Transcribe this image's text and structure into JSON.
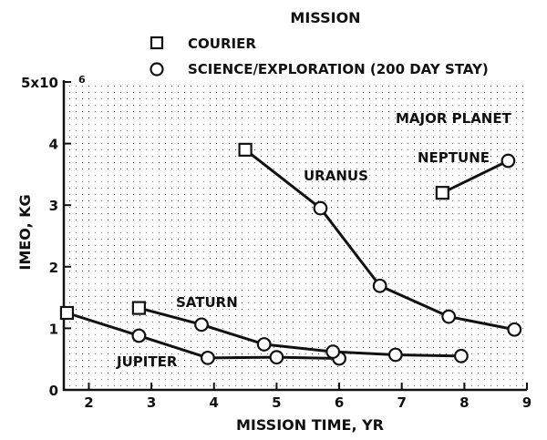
{
  "chart_data": {
    "type": "line",
    "legend": {
      "title": "MISSION",
      "entries": [
        {
          "marker": "square",
          "label": "COURIER"
        },
        {
          "marker": "circle",
          "label": "SCIENCE/EXPLORATION (200 DAY STAY)"
        }
      ],
      "placement": "top-center"
    },
    "xlabel": "MISSION TIME,  YR",
    "ylabel": "IMEO,  KG",
    "xlim": [
      1.6,
      9
    ],
    "ylim": [
      0,
      5000000
    ],
    "xticks": [
      "2",
      "3",
      "4",
      "5",
      "6",
      "7",
      "8",
      "9"
    ],
    "yticks": [
      "0",
      "1",
      "2",
      "3",
      "4",
      "5x10"
    ],
    "y_multiplier_exponent": "6",
    "grid": "dotted",
    "annotations": [
      "MAJOR PLANET"
    ],
    "series": [
      {
        "name": "JUPITER",
        "points": [
          {
            "x": 1.65,
            "y": 1250000,
            "marker": "square"
          },
          {
            "x": 2.8,
            "y": 880000,
            "marker": "circle"
          },
          {
            "x": 3.9,
            "y": 520000,
            "marker": "circle"
          },
          {
            "x": 5.0,
            "y": 530000,
            "marker": "circle"
          },
          {
            "x": 6.0,
            "y": 510000,
            "marker": "circle"
          }
        ]
      },
      {
        "name": "SATURN",
        "points": [
          {
            "x": 2.8,
            "y": 1330000,
            "marker": "square"
          },
          {
            "x": 3.8,
            "y": 1060000,
            "marker": "circle"
          },
          {
            "x": 4.8,
            "y": 740000,
            "marker": "circle"
          },
          {
            "x": 5.9,
            "y": 620000,
            "marker": "circle"
          },
          {
            "x": 6.9,
            "y": 570000,
            "marker": "circle"
          },
          {
            "x": 7.95,
            "y": 550000,
            "marker": "circle"
          }
        ]
      },
      {
        "name": "URANUS",
        "points": [
          {
            "x": 4.5,
            "y": 3900000,
            "marker": "square"
          },
          {
            "x": 5.7,
            "y": 2950000,
            "marker": "circle"
          },
          {
            "x": 6.65,
            "y": 1690000,
            "marker": "circle"
          },
          {
            "x": 7.75,
            "y": 1190000,
            "marker": "circle"
          },
          {
            "x": 8.8,
            "y": 980000,
            "marker": "circle"
          }
        ]
      },
      {
        "name": "NEPTUNE",
        "points": [
          {
            "x": 7.65,
            "y": 3200000,
            "marker": "square"
          },
          {
            "x": 8.7,
            "y": 3720000,
            "marker": "circle"
          }
        ]
      }
    ]
  }
}
